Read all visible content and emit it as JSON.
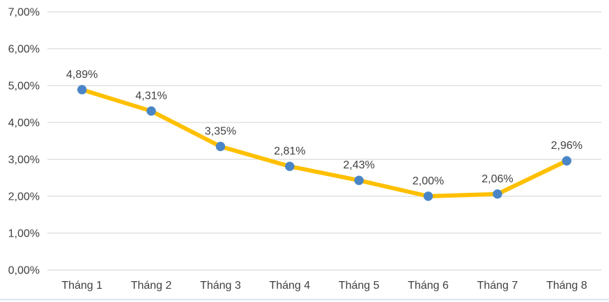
{
  "chart_data": {
    "type": "line",
    "title": "",
    "xlabel": "",
    "ylabel": "",
    "categories": [
      "Tháng 1",
      "Tháng 2",
      "Tháng 3",
      "Tháng 4",
      "Tháng 5",
      "Tháng 6",
      "Tháng 7",
      "Tháng 8"
    ],
    "series": [
      {
        "name": "",
        "values": [
          4.89,
          4.31,
          3.35,
          2.81,
          2.43,
          2.0,
          2.06,
          2.96
        ],
        "value_labels": [
          "4,89%",
          "4,31%",
          "3,35%",
          "2,81%",
          "2,43%",
          "2,00%",
          "2,06%",
          "2,96%"
        ]
      }
    ],
    "y_axis": {
      "tick_values": [
        7,
        6,
        5,
        4,
        3,
        2,
        1,
        0
      ],
      "tick_labels": [
        "7,00%",
        "6,00%",
        "5,00%",
        "4,00%",
        "3,00%",
        "2,00%",
        "1,00%",
        "0,00%"
      ]
    },
    "ylim": [
      0,
      7
    ],
    "grid": true,
    "legend_position": "none",
    "colors": {
      "line": "#FFC000",
      "marker": "#4A86C7",
      "gridline": "#D9D9D9",
      "axis_text": "#404040",
      "data_label_text": "#404040",
      "bottom_divider": "#D9E5F1",
      "background": "#FFFFFF"
    }
  }
}
